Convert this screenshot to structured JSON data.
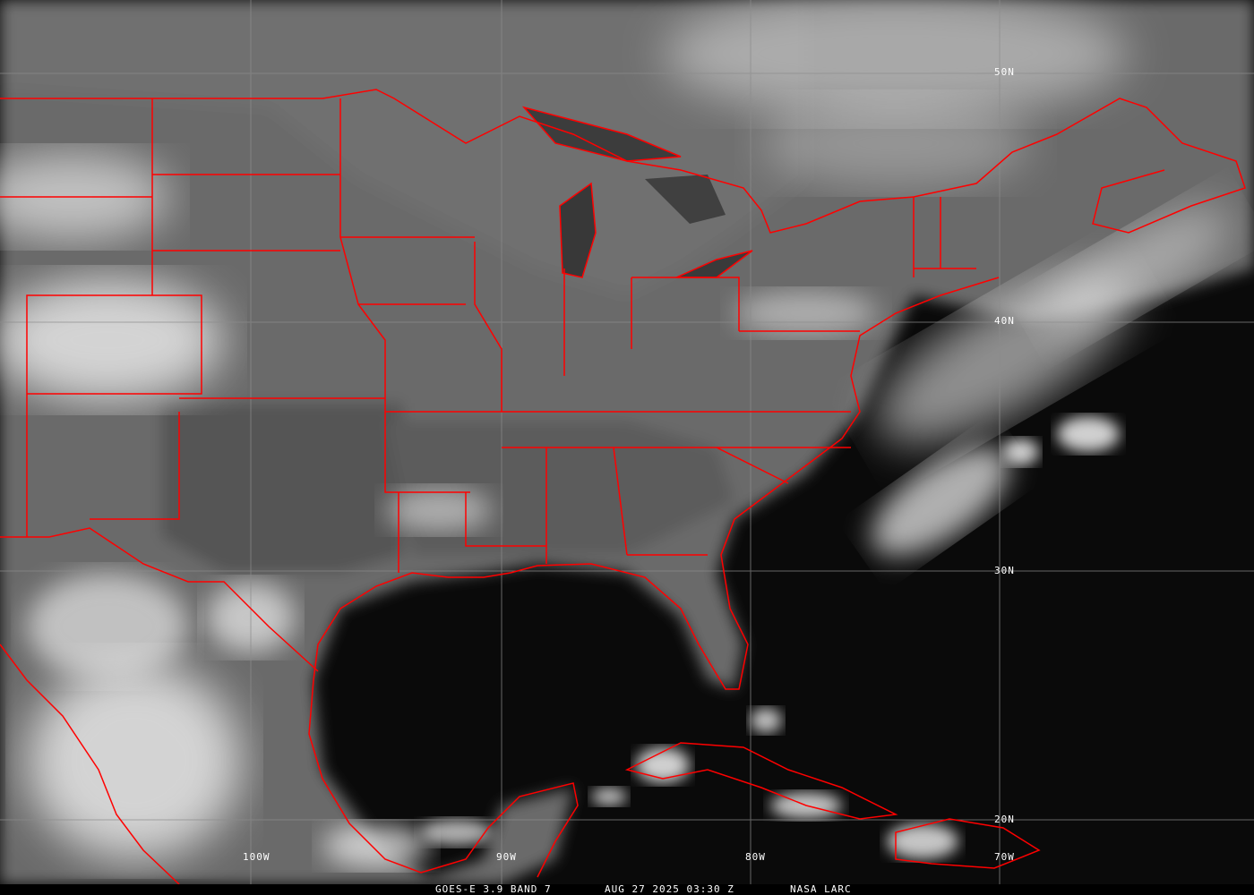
{
  "image": {
    "satellite": "GOES-E",
    "channel": "3.9",
    "band": "BAND 7",
    "caption_product": "GOES-E 3.9 BAND 7",
    "caption_datetime": "AUG 27 2025 03:30 Z",
    "caption_source": "NASA LARC",
    "border_color": "#ff0000",
    "grid_color": "#8c8c8c"
  },
  "grid": {
    "latitudes": [
      "50N",
      "40N",
      "30N",
      "20N"
    ],
    "longitudes": [
      "100W",
      "90W",
      "80W",
      "70W"
    ]
  }
}
